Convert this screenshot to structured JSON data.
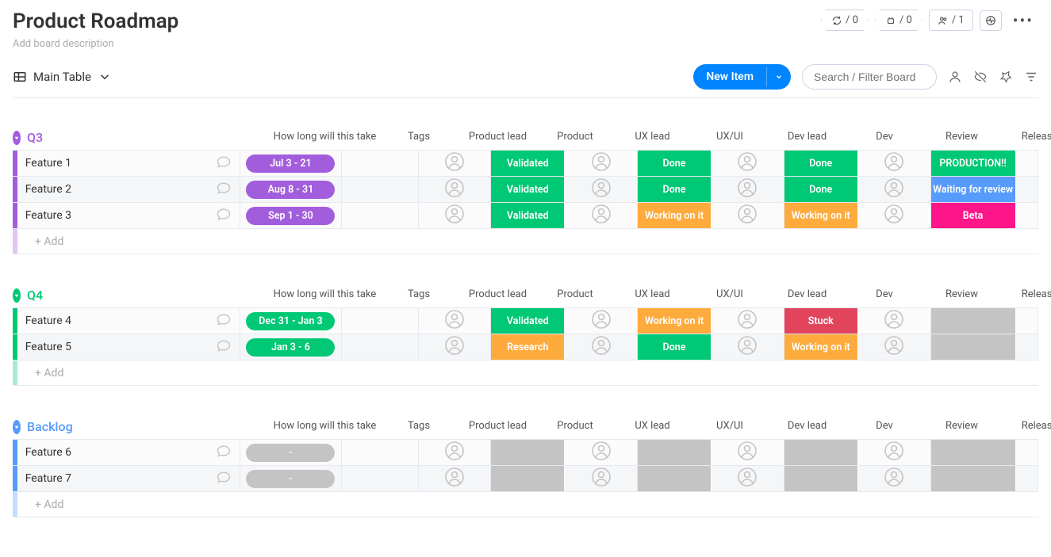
{
  "board": {
    "title": "Product Roadmap",
    "description_placeholder": "Add board description"
  },
  "header_badges": {
    "cycle": "/ 0",
    "robot": "/ 0",
    "people": "/ 1"
  },
  "toolbar": {
    "view_label": "Main Table",
    "new_item_label": "New Item",
    "search_placeholder": "Search / Filter Board"
  },
  "columns": [
    "How long will this take",
    "Tags",
    "Product lead",
    "Product",
    "UX lead",
    "UX/UI",
    "Dev lead",
    "Dev",
    "Review",
    "Released !"
  ],
  "add_row_label": "+ Add",
  "status_colors": {
    "Validated": "#00c875",
    "Done": "#00c875",
    "Working on it": "#fdab3d",
    "PRODUCTION!!": "#00c875",
    "Waiting for review": "#579bfc",
    "Beta": "#ff158a",
    "Stuck": "#e2445c",
    "Research": "#fdab3d"
  },
  "groups": [
    {
      "name": "Q3",
      "color": "#a25ddc",
      "pill_color": "#a25ddc",
      "rows": [
        {
          "name": "Feature 1",
          "time": "Jul 3 - 21",
          "product": "Validated",
          "uxui": "Done",
          "dev": "Done",
          "released": "PRODUCTION!!"
        },
        {
          "name": "Feature 2",
          "time": "Aug 8 - 31",
          "product": "Validated",
          "uxui": "Done",
          "dev": "Done",
          "released": "Waiting for review"
        },
        {
          "name": "Feature 3",
          "time": "Sep 1 - 30",
          "product": "Validated",
          "uxui": "Working on it",
          "dev": "Working on it",
          "released": "Beta"
        }
      ]
    },
    {
      "name": "Q4",
      "color": "#00c875",
      "pill_color": "#00c875",
      "rows": [
        {
          "name": "Feature 4",
          "time": "Dec 31 - Jan 3",
          "product": "Validated",
          "uxui": "Working on it",
          "dev": "Stuck",
          "released": ""
        },
        {
          "name": "Feature 5",
          "time": "Jan 3 - 6",
          "product": "Research",
          "uxui": "Done",
          "dev": "Working on it",
          "released": ""
        }
      ]
    },
    {
      "name": "Backlog",
      "color": "#579bfc",
      "pill_color": "#c4c4c4",
      "rows": [
        {
          "name": "Feature 6",
          "time": "-",
          "product": "",
          "uxui": "",
          "dev": "",
          "released": ""
        },
        {
          "name": "Feature 7",
          "time": "-",
          "product": "",
          "uxui": "",
          "dev": "",
          "released": ""
        }
      ]
    }
  ]
}
